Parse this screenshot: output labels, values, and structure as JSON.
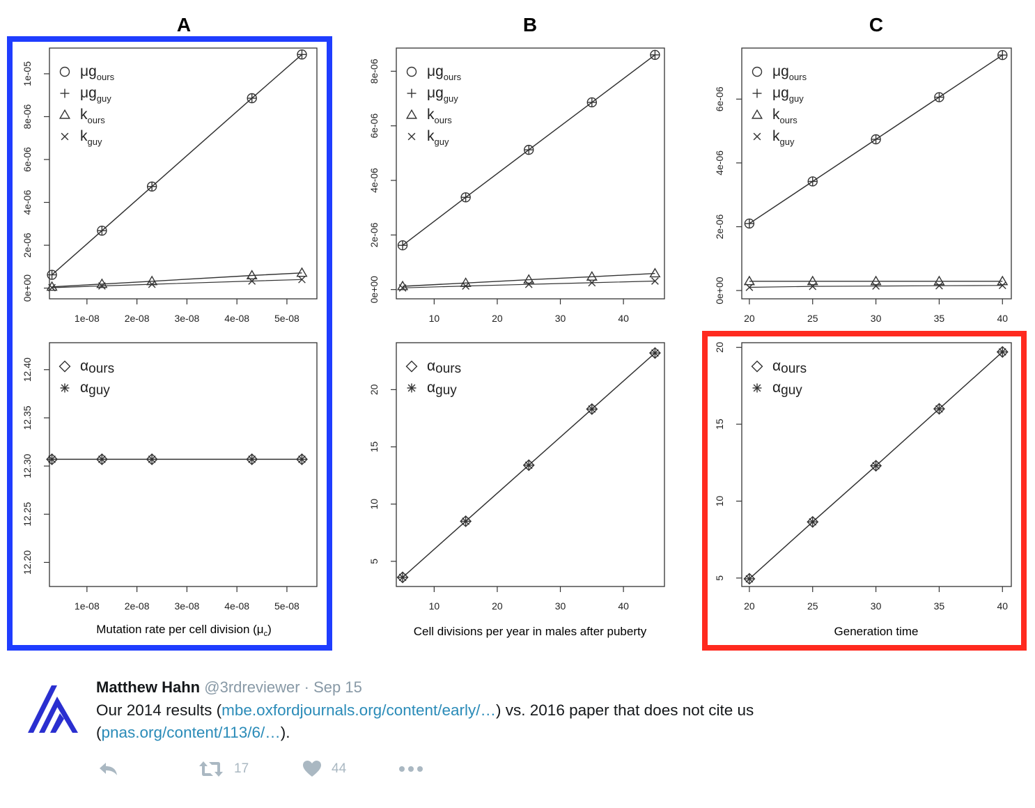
{
  "figure": {
    "panel_letters": [
      "A",
      "B",
      "C"
    ],
    "highlight_colors": {
      "blue": "#1f3dff",
      "red": "#ff2a1f"
    },
    "legend_top": [
      {
        "sym": "circle",
        "greek": "μ",
        "main": "g",
        "sub": "ours"
      },
      {
        "sym": "plus",
        "greek": "μ",
        "main": "g",
        "sub": "guy"
      },
      {
        "sym": "triangle",
        "greek": "",
        "main": "k",
        "sub": "ours"
      },
      {
        "sym": "cross",
        "greek": "",
        "main": "k",
        "sub": "guy"
      }
    ],
    "legend_bottom": [
      {
        "sym": "diamond",
        "greek": "α",
        "main": "",
        "sub": "ours"
      },
      {
        "sym": "asterisk",
        "greek": "α",
        "main": "",
        "sub": "guy"
      }
    ],
    "xlabels": [
      {
        "text": "Mutation rate per cell division (",
        "sym": "μ",
        "sub": "c",
        "close": ")"
      },
      {
        "text": "Cell divisions per year in males after puberty",
        "sym": "",
        "sub": "",
        "close": ""
      },
      {
        "text": "Generation time",
        "sym": "",
        "sub": "",
        "close": ""
      }
    ]
  },
  "chart_data": [
    {
      "panel": "A-top",
      "type": "line",
      "x": [
        3e-09,
        1.3e-08,
        2.3e-08,
        4.3e-08,
        5.3e-08
      ],
      "xlim": [
        2.5e-09,
        5.6e-08
      ],
      "xticks": [
        1e-08,
        2e-08,
        3e-08,
        4e-08,
        5e-08
      ],
      "xtick_labels": [
        "1e-08",
        "2e-08",
        "3e-08",
        "4e-08",
        "5e-08"
      ],
      "ylim": [
        -5e-07,
        1.12e-05
      ],
      "yticks": [
        0,
        2e-06,
        4e-06,
        6e-06,
        8e-06,
        1e-05
      ],
      "ytick_labels": [
        "0e+00",
        "2e-06",
        "4e-06",
        "6e-06",
        "8e-06",
        "1e-05"
      ],
      "series": [
        {
          "name": "mu_g_ours",
          "marker": "circle",
          "values": [
            6.2e-07,
            2.68e-06,
            4.74e-06,
            8.86e-06,
            1.09e-05
          ]
        },
        {
          "name": "mu_g_guy",
          "marker": "plus",
          "values": [
            6.2e-07,
            2.68e-06,
            4.74e-06,
            8.86e-06,
            1.09e-05
          ]
        },
        {
          "name": "k_ours",
          "marker": "triangle",
          "values": [
            6e-08,
            1.9e-07,
            3.2e-07,
            5.9e-07,
            7.1e-07
          ]
        },
        {
          "name": "k_guy",
          "marker": "cross",
          "values": [
            2e-08,
            1e-07,
            1.8e-07,
            3.3e-07,
            4e-07
          ]
        }
      ]
    },
    {
      "panel": "B-top",
      "type": "line",
      "x": [
        5,
        15,
        25,
        35,
        45
      ],
      "xlim": [
        4,
        46.5
      ],
      "xticks": [
        10,
        20,
        30,
        40
      ],
      "xtick_labels": [
        "10",
        "20",
        "30",
        "40"
      ],
      "ylim": [
        -3.4e-07,
        8.85e-06
      ],
      "yticks": [
        0,
        2e-06,
        4e-06,
        6e-06,
        8e-06
      ],
      "ytick_labels": [
        "0e+00",
        "2e-06",
        "4e-06",
        "6e-06",
        "8e-06"
      ],
      "series": [
        {
          "name": "mu_g_ours",
          "marker": "circle",
          "values": [
            1.62e-06,
            3.38e-06,
            5.12e-06,
            6.86e-06,
            8.6e-06
          ]
        },
        {
          "name": "mu_g_guy",
          "marker": "plus",
          "values": [
            1.62e-06,
            3.38e-06,
            5.12e-06,
            6.86e-06,
            8.6e-06
          ]
        },
        {
          "name": "k_ours",
          "marker": "triangle",
          "values": [
            1.2e-07,
            2.4e-07,
            3.6e-07,
            4.7e-07,
            5.9e-07
          ]
        },
        {
          "name": "k_guy",
          "marker": "cross",
          "values": [
            6e-08,
            1.3e-07,
            1.9e-07,
            2.5e-07,
            3.1e-07
          ]
        }
      ]
    },
    {
      "panel": "C-top",
      "type": "line",
      "x": [
        20,
        25,
        30,
        35,
        40
      ],
      "xlim": [
        19.4,
        40.7
      ],
      "xticks": [
        20,
        25,
        30,
        35,
        40
      ],
      "xtick_labels": [
        "20",
        "25",
        "30",
        "35",
        "40"
      ],
      "ylim": [
        -2.6e-07,
        7.6e-06
      ],
      "yticks": [
        0,
        2e-06,
        4e-06,
        6e-06
      ],
      "ytick_labels": [
        "0e+00",
        "2e-06",
        "4e-06",
        "6e-06"
      ],
      "series": [
        {
          "name": "mu_g_ours",
          "marker": "circle",
          "values": [
            2.1e-06,
            3.42e-06,
            4.74e-06,
            6.06e-06,
            7.38e-06
          ]
        },
        {
          "name": "mu_g_guy",
          "marker": "plus",
          "values": [
            2.1e-06,
            3.42e-06,
            4.74e-06,
            6.06e-06,
            7.38e-06
          ]
        },
        {
          "name": "k_ours",
          "marker": "triangle",
          "values": [
            2.9e-07,
            2.9e-07,
            2.9e-07,
            2.9e-07,
            2.9e-07
          ]
        },
        {
          "name": "k_guy",
          "marker": "cross",
          "values": [
            1e-07,
            1.3e-07,
            1.4e-07,
            1.5e-07,
            1.6e-07
          ]
        }
      ]
    },
    {
      "panel": "A-bottom",
      "type": "line",
      "x": [
        3e-09,
        1.3e-08,
        2.3e-08,
        4.3e-08,
        5.3e-08
      ],
      "xlim": [
        2.5e-09,
        5.6e-08
      ],
      "xticks": [
        1e-08,
        2e-08,
        3e-08,
        4e-08,
        5e-08
      ],
      "xtick_labels": [
        "1e-08",
        "2e-08",
        "3e-08",
        "4e-08",
        "5e-08"
      ],
      "ylim": [
        12.175,
        12.428
      ],
      "yticks": [
        12.2,
        12.25,
        12.3,
        12.35,
        12.4
      ],
      "ytick_labels": [
        "12.20",
        "12.25",
        "12.30",
        "12.35",
        "12.40"
      ],
      "series": [
        {
          "name": "alpha_ours",
          "marker": "diamond",
          "values": [
            12.307,
            12.307,
            12.307,
            12.307,
            12.307
          ]
        },
        {
          "name": "alpha_guy",
          "marker": "asterisk",
          "values": [
            12.307,
            12.307,
            12.307,
            12.307,
            12.307
          ]
        }
      ]
    },
    {
      "panel": "B-bottom",
      "type": "line",
      "x": [
        5,
        15,
        25,
        35,
        45
      ],
      "xlim": [
        4,
        46.5
      ],
      "xticks": [
        10,
        20,
        30,
        40
      ],
      "xtick_labels": [
        "10",
        "20",
        "30",
        "40"
      ],
      "ylim": [
        2.8,
        24.1
      ],
      "yticks": [
        5,
        10,
        15,
        20
      ],
      "ytick_labels": [
        "5",
        "10",
        "15",
        "20"
      ],
      "series": [
        {
          "name": "alpha_ours",
          "marker": "diamond",
          "values": [
            3.6,
            8.5,
            13.4,
            18.3,
            23.2
          ]
        },
        {
          "name": "alpha_guy",
          "marker": "asterisk",
          "values": [
            3.6,
            8.5,
            13.4,
            18.3,
            23.2
          ]
        }
      ]
    },
    {
      "panel": "C-bottom",
      "type": "line",
      "x": [
        20,
        25,
        30,
        35,
        40
      ],
      "xlim": [
        19.4,
        40.7
      ],
      "xticks": [
        20,
        25,
        30,
        35,
        40
      ],
      "xtick_labels": [
        "20",
        "25",
        "30",
        "35",
        "40"
      ],
      "ylim": [
        4.45,
        20.3
      ],
      "yticks": [
        5,
        10,
        15,
        20
      ],
      "ytick_labels": [
        "5",
        "10",
        "15",
        "20"
      ],
      "series": [
        {
          "name": "alpha_ours",
          "marker": "diamond",
          "values": [
            4.95,
            8.65,
            12.3,
            16.0,
            19.7
          ]
        },
        {
          "name": "alpha_guy",
          "marker": "asterisk",
          "values": [
            4.95,
            8.65,
            12.3,
            16.0,
            19.7
          ]
        }
      ]
    }
  ],
  "tweet": {
    "author_name": "Matthew Hahn",
    "handle": "@3rdreviewer",
    "separator": "·",
    "date": "Sep 15",
    "text_part1": "Our 2014 results (",
    "link1": "mbe.oxfordjournals.org/content/early/…",
    "text_part2": ") vs. 2016 paper that does not cite us",
    "text_part3": "(",
    "link2": "pnas.org/content/113/6/…",
    "text_part4": ").",
    "retweet_count": "17",
    "like_count": "44",
    "icons": {
      "reply": "reply-icon",
      "retweet": "retweet-icon",
      "like": "heart-icon",
      "more": "more-icon"
    },
    "avatar_color": "#2a2fd0",
    "icon_color": "#aab8c2"
  }
}
